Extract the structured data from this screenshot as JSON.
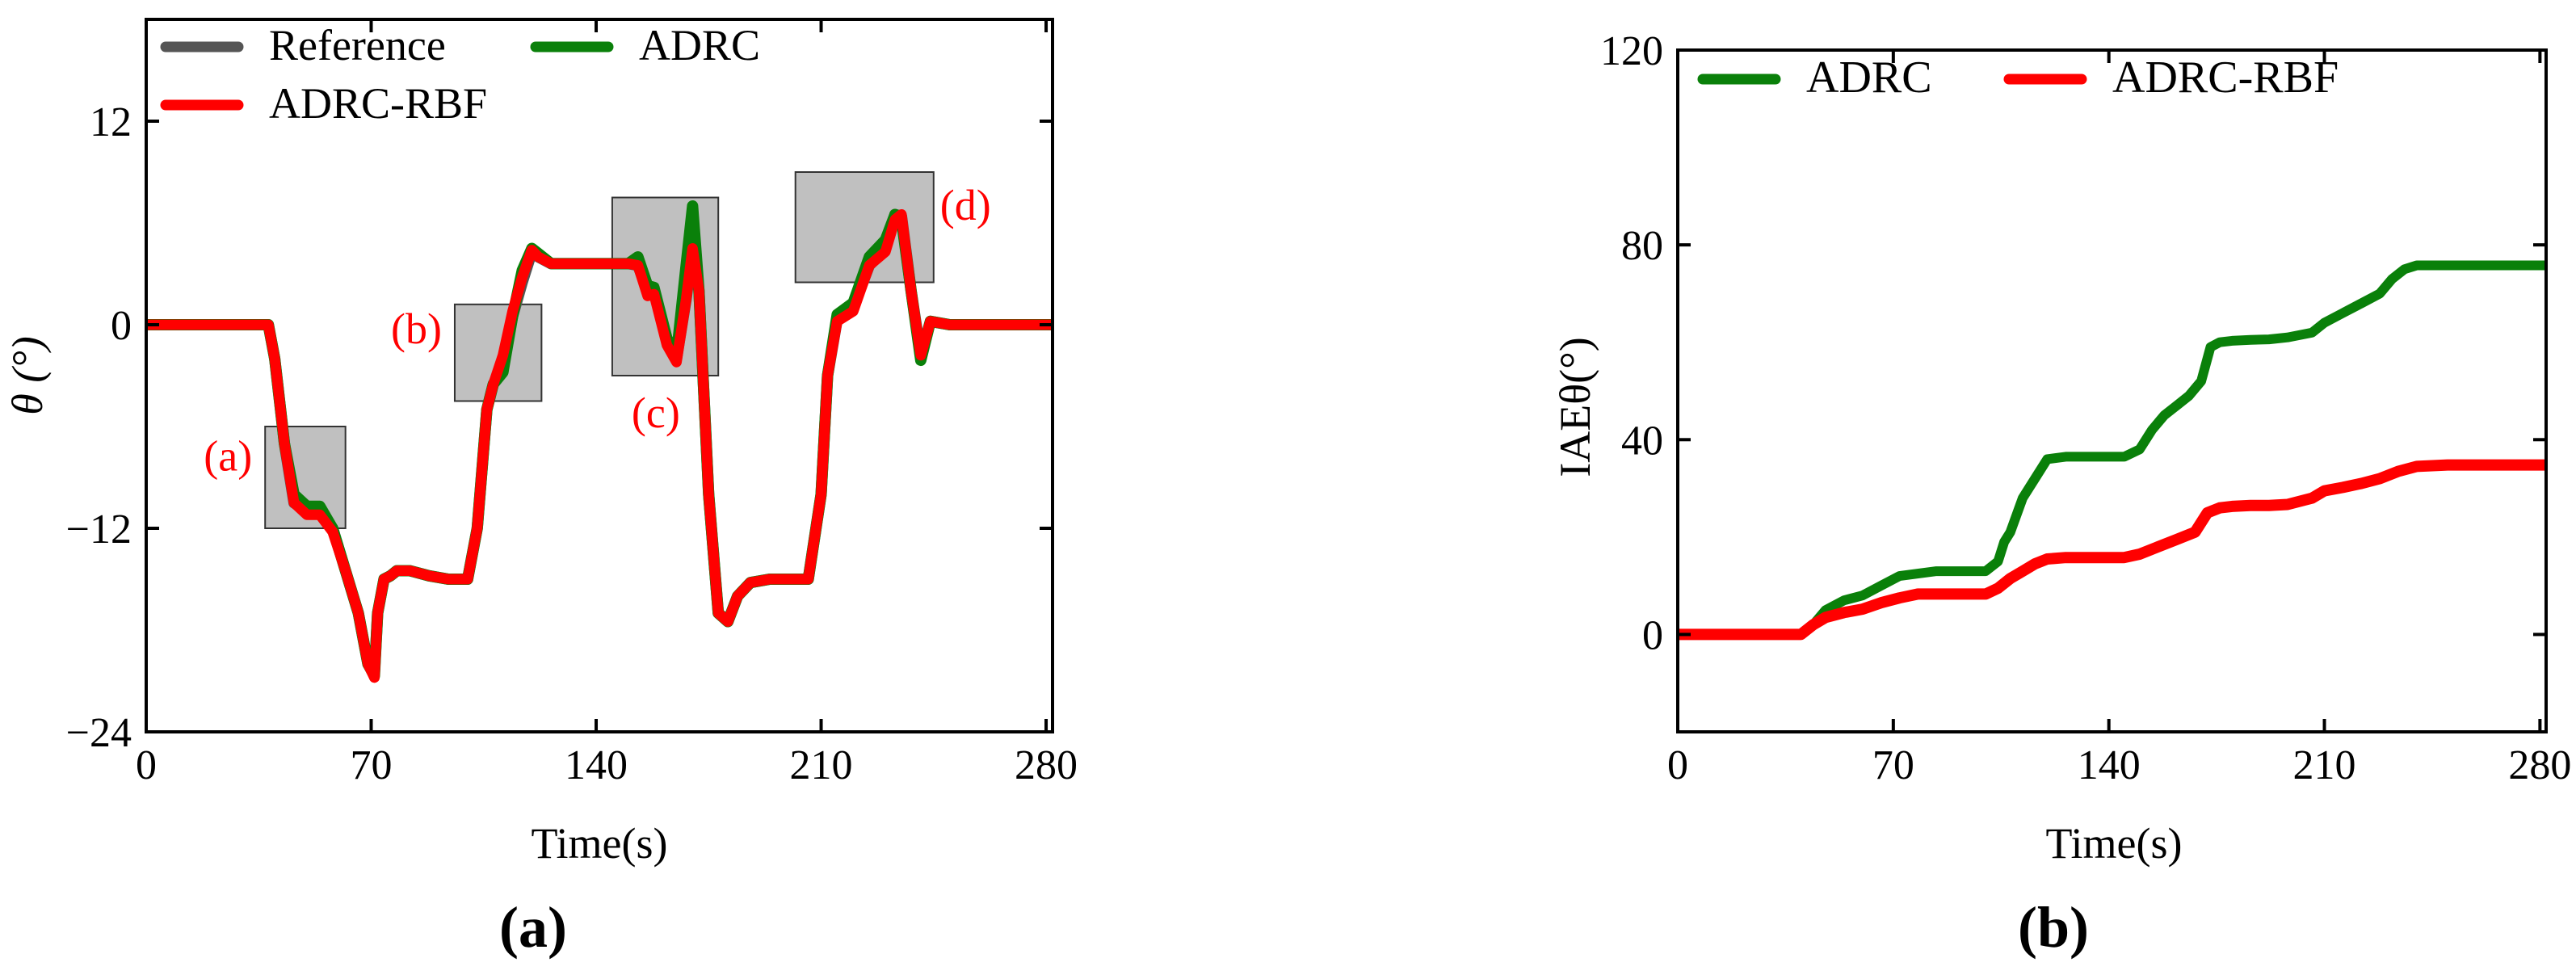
{
  "chart_data": [
    {
      "type": "line",
      "panel_label": "(a)",
      "xlabel": "Time(s)",
      "ylabel": "θ (°)",
      "xlim": [
        0,
        282
      ],
      "ylim": [
        -24,
        18
      ],
      "xticks": [
        0,
        70,
        140,
        210,
        280
      ],
      "xtick_labels": [
        "0",
        "70",
        "140",
        "210",
        "280"
      ],
      "yticks": [
        -24,
        -12,
        0,
        12
      ],
      "ytick_labels": [
        "−24",
        "−12",
        "0",
        "12"
      ],
      "grid": false,
      "legend_position": "top-left",
      "legend": [
        "Reference",
        "ADRC",
        "ADRC-RBF"
      ],
      "colors": {
        "Reference": "#555555",
        "ADRC": "#0a800a",
        "ADRC-RBF": "#ff0000",
        "box_fill": "#c0c0c0"
      },
      "series": [
        {
          "name": "Reference",
          "x": [
            0,
            38,
            40,
            43,
            46,
            50,
            54,
            58,
            62,
            66,
            69,
            71,
            72,
            74,
            76,
            78,
            82,
            88,
            94,
            100,
            103,
            106,
            108,
            111,
            114,
            117,
            120,
            122,
            126,
            130,
            134,
            140,
            145,
            150,
            153,
            156,
            158,
            162,
            165,
            168,
            170,
            172,
            175,
            178,
            181,
            184,
            188,
            194,
            200,
            206,
            210,
            212,
            215,
            220,
            225,
            230,
            233,
            235,
            238,
            241,
            244,
            250,
            282
          ],
          "values": [
            0,
            0,
            -2,
            -7,
            -10.5,
            -11,
            -11,
            -12,
            -14.5,
            -17,
            -20,
            -20.5,
            -17,
            -15,
            -14.8,
            -14.5,
            -14.5,
            -14.8,
            -15,
            -15,
            -12,
            -5,
            -3.5,
            -2.5,
            0.5,
            2.5,
            4.3,
            4,
            3.6,
            3.6,
            3.6,
            3.6,
            3.6,
            3.6,
            3.5,
            2,
            2,
            -1,
            -2,
            1.5,
            4.5,
            2,
            -10,
            -17,
            -17.5,
            -16,
            -15.2,
            -15,
            -15,
            -15,
            -10,
            -3,
            0.3,
            1,
            3.5,
            4.5,
            6.5,
            6.4,
            2,
            -1.8,
            0.2,
            0,
            0
          ]
        },
        {
          "name": "ADRC",
          "x": [
            0,
            38,
            40,
            43,
            46,
            50,
            54,
            58,
            62,
            66,
            69,
            71,
            72,
            74,
            76,
            78,
            82,
            88,
            94,
            100,
            103,
            106,
            108,
            111,
            114,
            117,
            120,
            122,
            126,
            130,
            134,
            140,
            145,
            150,
            153,
            156,
            158,
            162,
            165,
            168,
            170,
            172,
            175,
            178,
            181,
            184,
            188,
            194,
            200,
            206,
            210,
            212,
            215,
            220,
            225,
            230,
            233,
            235,
            238,
            241,
            244,
            250,
            282
          ],
          "values": [
            0,
            0,
            -2,
            -7,
            -10,
            -10.7,
            -10.7,
            -12,
            -14.5,
            -17,
            -20,
            -20.7,
            -17,
            -15,
            -14.8,
            -14.5,
            -14.5,
            -14.8,
            -15,
            -15,
            -12,
            -5,
            -3.5,
            -2.8,
            0.5,
            3.2,
            4.5,
            4.2,
            3.6,
            3.6,
            3.6,
            3.6,
            3.6,
            3.6,
            4,
            2.3,
            2.2,
            -0.8,
            -1.8,
            3.5,
            7,
            2,
            -10,
            -17,
            -17.5,
            -16,
            -15.2,
            -15,
            -15,
            -15,
            -10,
            -3,
            0.6,
            1.3,
            4,
            5,
            6.5,
            6.2,
            2,
            -2.1,
            0.2,
            0,
            0
          ]
        },
        {
          "name": "ADRC-RBF",
          "x": [
            0,
            38,
            40,
            43,
            46,
            50,
            54,
            58,
            62,
            66,
            69,
            71,
            72,
            74,
            76,
            78,
            82,
            88,
            94,
            100,
            103,
            106,
            108,
            111,
            114,
            117,
            120,
            122,
            126,
            130,
            134,
            140,
            145,
            150,
            153,
            156,
            158,
            162,
            165,
            168,
            170,
            172,
            175,
            178,
            181,
            184,
            188,
            194,
            200,
            206,
            210,
            212,
            215,
            220,
            225,
            230,
            233,
            235,
            238,
            241,
            244,
            250,
            282
          ],
          "values": [
            0,
            0,
            -2,
            -7,
            -10.5,
            -11.2,
            -11.2,
            -12.2,
            -14.5,
            -17,
            -20,
            -20.8,
            -17,
            -15,
            -14.8,
            -14.5,
            -14.5,
            -14.8,
            -15,
            -15,
            -12,
            -5,
            -3.5,
            -1.8,
            0.8,
            2.8,
            4.4,
            4,
            3.6,
            3.6,
            3.6,
            3.6,
            3.6,
            3.6,
            3.5,
            1.7,
            1.8,
            -1.2,
            -2.2,
            1.5,
            4.5,
            2,
            -10,
            -17,
            -17.5,
            -16,
            -15.2,
            -15,
            -15,
            -15,
            -10,
            -3,
            0.2,
            0.8,
            3.5,
            4.3,
            6.2,
            6.5,
            2,
            -1.8,
            0.2,
            0,
            0
          ]
        }
      ],
      "annotations": [
        {
          "label": "(a)",
          "box_x": [
            37,
            62
          ],
          "box_y": [
            -12,
            -6
          ]
        },
        {
          "label": "(b)",
          "box_x": [
            96,
            123
          ],
          "box_y": [
            -4.5,
            1.2
          ]
        },
        {
          "label": "(c)",
          "box_x": [
            145,
            178
          ],
          "box_y": [
            -3,
            7.5
          ]
        },
        {
          "label": "(d)",
          "box_x": [
            202,
            245
          ],
          "box_y": [
            2.5,
            9
          ]
        }
      ]
    },
    {
      "type": "line",
      "panel_label": "(b)",
      "xlabel": "Time(s)",
      "ylabel": "IAEθ(°)",
      "xlim": [
        0,
        282
      ],
      "ylim": [
        -20,
        120
      ],
      "xticks": [
        0,
        70,
        140,
        210,
        280
      ],
      "xtick_labels": [
        "0",
        "70",
        "140",
        "210",
        "280"
      ],
      "yticks": [
        0,
        40,
        80,
        120
      ],
      "ytick_labels": [
        "0",
        "40",
        "80",
        "120"
      ],
      "grid": false,
      "legend_position": "top-left",
      "legend": [
        "ADRC",
        "ADRC-RBF"
      ],
      "colors": {
        "ADRC": "#0a800a",
        "ADRC-RBF": "#ff0000"
      },
      "series": [
        {
          "name": "ADRC",
          "x": [
            0,
            40,
            44,
            48,
            54,
            60,
            66,
            72,
            78,
            84,
            90,
            96,
            100,
            104,
            106,
            108,
            112,
            116,
            120,
            126,
            132,
            138,
            145,
            150,
            154,
            158,
            162,
            166,
            170,
            173,
            176,
            180,
            186,
            192,
            198,
            206,
            210,
            216,
            222,
            228,
            232,
            236,
            240,
            250,
            260,
            270,
            282
          ],
          "values": [
            0,
            0,
            2,
            5,
            7,
            8,
            10,
            12,
            12.5,
            13,
            13,
            13,
            13,
            15,
            19,
            21,
            28,
            32,
            36,
            36.5,
            36.5,
            36.5,
            36.5,
            38,
            42,
            45,
            47,
            49,
            52,
            59,
            60,
            60.3,
            60.5,
            60.6,
            61,
            62,
            64,
            66,
            68,
            70,
            73,
            75,
            75.8,
            75.8,
            75.8,
            75.8,
            75.8
          ]
        },
        {
          "name": "ADRC-RBF",
          "x": [
            0,
            40,
            44,
            48,
            54,
            60,
            66,
            72,
            78,
            84,
            90,
            96,
            100,
            104,
            108,
            112,
            116,
            120,
            126,
            132,
            138,
            145,
            150,
            156,
            162,
            168,
            172,
            176,
            180,
            186,
            192,
            198,
            206,
            210,
            216,
            222,
            228,
            234,
            240,
            250,
            260,
            270,
            282
          ],
          "values": [
            0,
            0,
            2,
            3.5,
            4.5,
            5.2,
            6.5,
            7.5,
            8.3,
            8.3,
            8.3,
            8.3,
            8.3,
            9.5,
            11.5,
            13,
            14.5,
            15.5,
            15.8,
            15.8,
            15.8,
            15.8,
            16.5,
            18,
            19.5,
            21,
            25,
            26,
            26.3,
            26.5,
            26.5,
            26.7,
            28,
            29.5,
            30.2,
            31,
            32,
            33.5,
            34.5,
            34.8,
            34.8,
            34.8,
            34.8
          ]
        }
      ]
    }
  ]
}
